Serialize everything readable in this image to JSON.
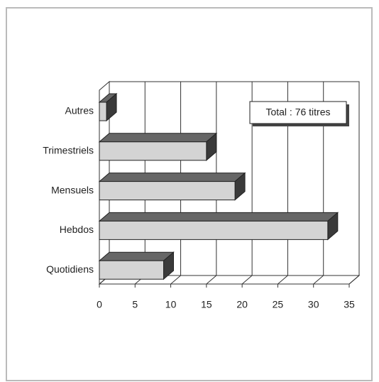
{
  "chart_data": {
    "type": "bar",
    "orientation": "horizontal",
    "categories": [
      "Autres",
      "Trimestriels",
      "Mensuels",
      "Hebdos",
      "Quotidiens"
    ],
    "values": [
      1,
      15,
      19,
      32,
      9
    ],
    "color": "#d4d4d4",
    "xlim": [
      0,
      35
    ],
    "xticks": [
      0,
      5,
      10,
      15,
      20,
      25,
      30,
      35
    ],
    "grid": true,
    "annotation": "Total : 76 titres"
  }
}
